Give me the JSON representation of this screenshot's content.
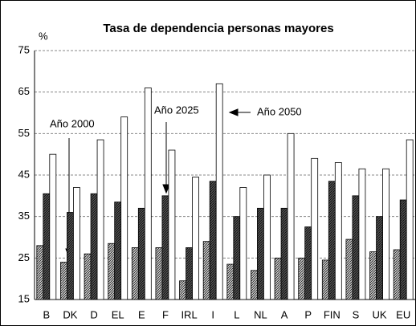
{
  "chart_data": {
    "type": "bar",
    "title": "Tasa de dependencia personas mayores",
    "y_label": "%",
    "categories": [
      "B",
      "DK",
      "D",
      "EL",
      "E",
      "F",
      "IRL",
      "I",
      "L",
      "NL",
      "A",
      "P",
      "FIN",
      "S",
      "UK",
      "EU"
    ],
    "series": [
      {
        "name": "Año 2000",
        "color": "#c8c8c8",
        "values": [
          28,
          24,
          26,
          28.5,
          27.5,
          27.5,
          19.5,
          29,
          23.5,
          22,
          25,
          25,
          24.5,
          29.5,
          26.5,
          27
        ]
      },
      {
        "name": "Año 2025",
        "color": "#505050",
        "values": [
          40.5,
          36,
          40.5,
          38.5,
          37,
          40,
          27.5,
          43.5,
          35,
          37,
          37,
          32.5,
          43.5,
          40,
          35,
          39
        ]
      },
      {
        "name": "Año 2050",
        "color": "#ffffff",
        "values": [
          50,
          42,
          53.5,
          59,
          66,
          51,
          44.5,
          67,
          42,
          45,
          55,
          49,
          48,
          46.5,
          46.5,
          53.5
        ]
      }
    ],
    "ylim": [
      15,
      75
    ],
    "yticks": [
      15,
      25,
      35,
      45,
      55,
      65,
      75
    ],
    "grid": true
  }
}
